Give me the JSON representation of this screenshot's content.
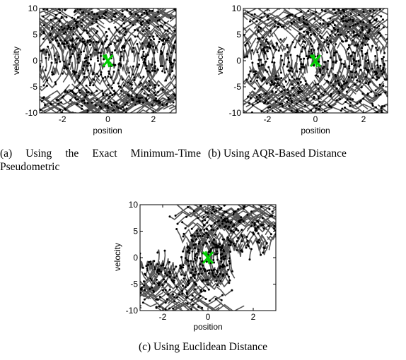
{
  "figures": {
    "a": {
      "caption": "(a) Using the Exact Minimum-Time Pseudometric"
    },
    "b": {
      "caption": "(b) Using AQR-Based Distance"
    },
    "c": {
      "caption": "(c) Using Euclidean Distance"
    }
  },
  "chart_data": [
    {
      "type": "scatter",
      "xlabel": "position",
      "ylabel": "velocity",
      "xlim": [
        -3,
        3
      ],
      "ylim": [
        -10,
        10
      ],
      "xticks": [
        "-2",
        "0",
        "2"
      ],
      "yticks": [
        "10",
        "5",
        "0",
        "-5",
        "-10"
      ],
      "colors": {
        "tree": "#555555",
        "nodes": "#000000",
        "goal": "#00cc00"
      },
      "goal_marker": {
        "x": 0,
        "y": 0
      }
    },
    {
      "type": "scatter",
      "xlabel": "position",
      "ylabel": "velocity",
      "xlim": [
        -3,
        3
      ],
      "ylim": [
        -10,
        10
      ],
      "xticks": [
        "-2",
        "0",
        "2"
      ],
      "yticks": [
        "10",
        "5",
        "0",
        "-5",
        "-10"
      ],
      "colors": {
        "tree": "#555555",
        "nodes": "#000000",
        "goal": "#00cc00"
      },
      "goal_marker": {
        "x": 0,
        "y": 0
      }
    },
    {
      "type": "scatter",
      "xlabel": "position",
      "ylabel": "velocity",
      "xlim": [
        -3,
        3
      ],
      "ylim": [
        -10,
        10
      ],
      "xticks": [
        "-2",
        "0",
        "2"
      ],
      "yticks": [
        "10",
        "5",
        "0",
        "-5",
        "-10"
      ],
      "colors": {
        "tree": "#555555",
        "nodes": "#000000",
        "goal": "#00cc00"
      },
      "goal_marker": {
        "x": 0,
        "y": 0
      }
    }
  ]
}
